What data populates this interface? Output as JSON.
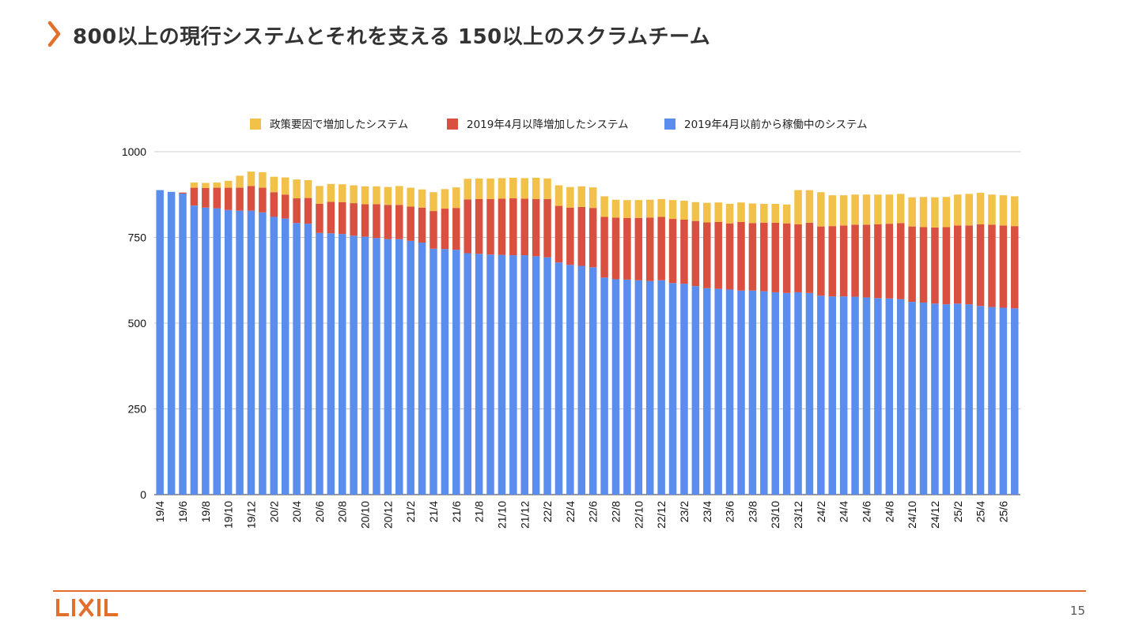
{
  "header": {
    "title": "800以上の現行システムとそれを支える 150以上のスクラムチーム"
  },
  "footer": {
    "logo_text": "LIXIL",
    "page_number": "15"
  },
  "colors": {
    "accent": "#e36f2c",
    "series_blue": "#5b8def",
    "series_red": "#d95040",
    "series_yellow": "#f2c14a",
    "grid": "#cccccc"
  },
  "chart_data": {
    "type": "bar",
    "stacked": true,
    "ylim": [
      0,
      1000
    ],
    "yticks": [
      0,
      250,
      500,
      750,
      1000
    ],
    "grid": true,
    "legend_position": "top",
    "legend": [
      "政策要因で増加したシステム",
      "2019年4月以降増加したシステム",
      "2019年4月以前から稼働中のシステム"
    ],
    "xtick_labels": [
      "19/4",
      "19/6",
      "19/8",
      "19/10",
      "19/12",
      "20/2",
      "20/4",
      "20/6",
      "20/8",
      "20/10",
      "20/12",
      "21/2",
      "21/4",
      "21/6",
      "21/8",
      "21/10",
      "21/12",
      "22/2",
      "22/4",
      "22/6",
      "22/8",
      "22/10",
      "22/12",
      "23/2",
      "23/4",
      "23/6",
      "23/8",
      "23/10",
      "23/12",
      "24/2",
      "24/4",
      "24/6",
      "24/8",
      "24/10",
      "24/12",
      "25/2",
      "25/4",
      "25/6"
    ],
    "categories": [
      "19/4",
      "19/5",
      "19/6",
      "19/7",
      "19/8",
      "19/9",
      "19/10",
      "19/11",
      "19/12",
      "20/1",
      "20/2",
      "20/3",
      "20/4",
      "20/5",
      "20/6",
      "20/7",
      "20/8",
      "20/9",
      "20/10",
      "20/11",
      "20/12",
      "21/1",
      "21/2",
      "21/3",
      "21/4",
      "21/5",
      "21/6",
      "21/7",
      "21/8",
      "21/9",
      "21/10",
      "21/11",
      "21/12",
      "22/1",
      "22/2",
      "22/3",
      "22/4",
      "22/5",
      "22/6",
      "22/7",
      "22/8",
      "22/9",
      "22/10",
      "22/11",
      "22/12",
      "23/1",
      "23/2",
      "23/3",
      "23/4",
      "23/5",
      "23/6",
      "23/7",
      "23/8",
      "23/9",
      "23/10",
      "23/11",
      "23/12",
      "24/1",
      "24/2",
      "24/3",
      "24/4",
      "24/5",
      "24/6",
      "24/7",
      "24/8",
      "24/9",
      "24/10",
      "24/11",
      "24/12",
      "25/1",
      "25/2",
      "25/3",
      "25/4",
      "25/5",
      "25/6",
      "25/7"
    ],
    "series": [
      {
        "name": "2019年4月以前から稼働中のシステム",
        "color": "#5b8def",
        "values": [
          888,
          883,
          878,
          843,
          837,
          835,
          830,
          828,
          828,
          823,
          810,
          805,
          792,
          790,
          763,
          762,
          760,
          755,
          752,
          748,
          745,
          745,
          740,
          735,
          717,
          716,
          714,
          704,
          702,
          700,
          699,
          698,
          698,
          695,
          692,
          677,
          670,
          667,
          663,
          633,
          628,
          627,
          625,
          623,
          625,
          617,
          615,
          608,
          602,
          600,
          598,
          595,
          595,
          593,
          590,
          588,
          590,
          588,
          580,
          578,
          578,
          577,
          575,
          573,
          572,
          570,
          562,
          560,
          557,
          555,
          557,
          555,
          550,
          547,
          545,
          543
        ]
      },
      {
        "name": "2019年4月以降増加したシステム",
        "color": "#d95040",
        "values": [
          0,
          0,
          3,
          52,
          57,
          60,
          65,
          67,
          72,
          72,
          72,
          70,
          72,
          75,
          85,
          92,
          93,
          95,
          95,
          99,
          100,
          100,
          100,
          102,
          110,
          118,
          122,
          157,
          160,
          162,
          164,
          166,
          165,
          167,
          170,
          165,
          167,
          172,
          173,
          177,
          180,
          180,
          182,
          185,
          185,
          187,
          187,
          190,
          192,
          195,
          193,
          200,
          197,
          200,
          203,
          203,
          198,
          205,
          202,
          205,
          207,
          210,
          212,
          215,
          218,
          222,
          220,
          220,
          222,
          225,
          228,
          230,
          238,
          240,
          240,
          240
        ]
      },
      {
        "name": "政策要因で増加したシステム",
        "color": "#f2c14a",
        "values": [
          0,
          0,
          0,
          15,
          15,
          15,
          20,
          35,
          42,
          45,
          45,
          50,
          55,
          52,
          52,
          52,
          52,
          52,
          52,
          52,
          52,
          55,
          55,
          53,
          55,
          57,
          60,
          60,
          60,
          60,
          60,
          60,
          60,
          62,
          60,
          60,
          60,
          60,
          60,
          60,
          52,
          52,
          52,
          52,
          52,
          55,
          55,
          55,
          57,
          57,
          57,
          57,
          57,
          55,
          55,
          55,
          100,
          95,
          100,
          90,
          88,
          88,
          88,
          87,
          85,
          85,
          85,
          88,
          88,
          88,
          90,
          92,
          92,
          88,
          88,
          87
        ]
      }
    ]
  }
}
